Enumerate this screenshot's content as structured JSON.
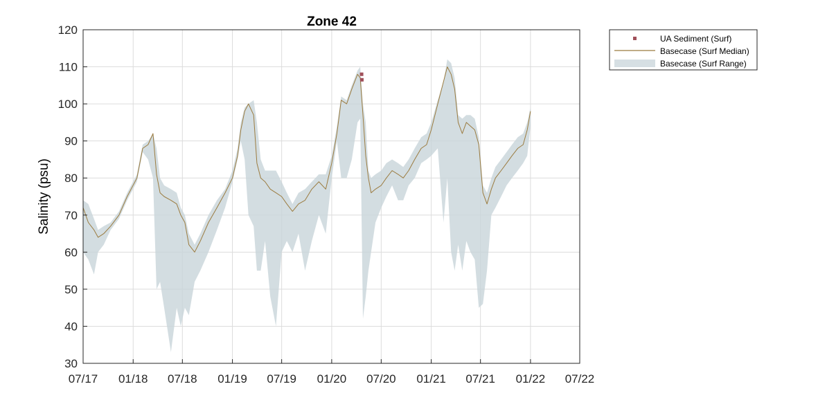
{
  "chart_data": {
    "type": "line",
    "title": "Zone 42",
    "ylabel": "Salinity (psu)",
    "xlabel": "",
    "xlim": [
      "2017-07-01",
      "2022-07-01"
    ],
    "ylim": [
      30,
      120
    ],
    "xticks": [
      {
        "date": "2017-07-01",
        "label": "07/17"
      },
      {
        "date": "2018-01-01",
        "label": "01/18"
      },
      {
        "date": "2018-07-01",
        "label": "07/18"
      },
      {
        "date": "2019-01-01",
        "label": "01/19"
      },
      {
        "date": "2019-07-01",
        "label": "07/19"
      },
      {
        "date": "2020-01-01",
        "label": "01/20"
      },
      {
        "date": "2020-07-01",
        "label": "07/20"
      },
      {
        "date": "2021-01-01",
        "label": "01/21"
      },
      {
        "date": "2021-07-01",
        "label": "07/21"
      },
      {
        "date": "2022-01-01",
        "label": "01/22"
      },
      {
        "date": "2022-07-01",
        "label": "07/22"
      }
    ],
    "yticks": [
      "30",
      "40",
      "50",
      "60",
      "70",
      "80",
      "90",
      "100",
      "110",
      "120"
    ],
    "grid": true,
    "legend_position": "outside-top-right",
    "colors": {
      "median": "#9b7b3f",
      "range": "#c8d4da",
      "sediment": "#a0505a"
    },
    "series": [
      {
        "name": "Basecase (Surf Median)",
        "kind": "line",
        "x": [
          "2017-07-01",
          "2017-07-20",
          "2017-08-10",
          "2017-08-25",
          "2017-09-15",
          "2017-10-10",
          "2017-11-10",
          "2017-12-10",
          "2018-01-15",
          "2018-02-05",
          "2018-02-25",
          "2018-03-15",
          "2018-03-28",
          "2018-04-10",
          "2018-04-25",
          "2018-05-20",
          "2018-06-10",
          "2018-06-25",
          "2018-07-10",
          "2018-07-25",
          "2018-08-15",
          "2018-09-05",
          "2018-10-05",
          "2018-11-05",
          "2018-12-05",
          "2019-01-01",
          "2019-01-20",
          "2019-02-01",
          "2019-02-15",
          "2019-03-01",
          "2019-03-20",
          "2019-04-01",
          "2019-04-15",
          "2019-05-01",
          "2019-05-20",
          "2019-06-10",
          "2019-07-01",
          "2019-07-20",
          "2019-08-10",
          "2019-09-01",
          "2019-09-25",
          "2019-10-20",
          "2019-11-15",
          "2019-12-10",
          "2020-01-01",
          "2020-01-20",
          "2020-02-05",
          "2020-02-25",
          "2020-03-15",
          "2020-04-05",
          "2020-04-15",
          "2020-04-25",
          "2020-05-05",
          "2020-05-15",
          "2020-05-25",
          "2020-06-10",
          "2020-07-01",
          "2020-07-20",
          "2020-08-10",
          "2020-09-01",
          "2020-09-20",
          "2020-10-10",
          "2020-11-01",
          "2020-11-25",
          "2020-12-15",
          "2021-01-01",
          "2021-01-25",
          "2021-02-15",
          "2021-03-01",
          "2021-03-15",
          "2021-03-28",
          "2021-04-10",
          "2021-04-25",
          "2021-05-10",
          "2021-05-25",
          "2021-06-10",
          "2021-06-25",
          "2021-07-10",
          "2021-07-25",
          "2021-08-10",
          "2021-08-25",
          "2021-09-15",
          "2021-10-05",
          "2021-10-25",
          "2021-11-15",
          "2021-12-05",
          "2021-12-20",
          "2022-01-01"
        ],
        "y": [
          72,
          68,
          66,
          64,
          65,
          67,
          70,
          75,
          80,
          88,
          89,
          92,
          81,
          76,
          75,
          74,
          73,
          70,
          68,
          62,
          60,
          63,
          68,
          72,
          76,
          80,
          86,
          93,
          98,
          100,
          97,
          84,
          80,
          79,
          77,
          76,
          75,
          73,
          71,
          73,
          74,
          77,
          79,
          77,
          84,
          92,
          101,
          100,
          104,
          108,
          107,
          97,
          86,
          80,
          76,
          77,
          78,
          80,
          82,
          81,
          80,
          82,
          85,
          88,
          89,
          93,
          100,
          106,
          110,
          108,
          104,
          95,
          92,
          95,
          94,
          93,
          89,
          76,
          73,
          77,
          80,
          82,
          84,
          86,
          88,
          89,
          93,
          98
        ]
      },
      {
        "name": "Basecase (Surf Range)",
        "kind": "band",
        "x": [
          "2017-07-01",
          "2017-07-20",
          "2017-08-10",
          "2017-08-25",
          "2017-09-15",
          "2017-10-10",
          "2017-11-10",
          "2017-12-10",
          "2018-01-15",
          "2018-02-05",
          "2018-02-25",
          "2018-03-15",
          "2018-03-28",
          "2018-04-10",
          "2018-04-25",
          "2018-05-20",
          "2018-06-10",
          "2018-06-25",
          "2018-07-10",
          "2018-07-25",
          "2018-08-15",
          "2018-09-05",
          "2018-10-05",
          "2018-11-05",
          "2018-12-05",
          "2019-01-01",
          "2019-01-20",
          "2019-02-01",
          "2019-02-15",
          "2019-03-01",
          "2019-03-20",
          "2019-04-01",
          "2019-04-15",
          "2019-05-01",
          "2019-05-20",
          "2019-06-10",
          "2019-07-01",
          "2019-07-20",
          "2019-08-10",
          "2019-09-01",
          "2019-09-25",
          "2019-10-20",
          "2019-11-15",
          "2019-12-10",
          "2020-01-01",
          "2020-01-20",
          "2020-02-05",
          "2020-02-25",
          "2020-03-15",
          "2020-04-05",
          "2020-04-15",
          "2020-04-25",
          "2020-05-05",
          "2020-05-15",
          "2020-05-25",
          "2020-06-10",
          "2020-07-01",
          "2020-07-20",
          "2020-08-10",
          "2020-09-01",
          "2020-09-20",
          "2020-10-10",
          "2020-11-01",
          "2020-11-25",
          "2020-12-15",
          "2021-01-01",
          "2021-01-25",
          "2021-02-15",
          "2021-03-01",
          "2021-03-15",
          "2021-03-28",
          "2021-04-10",
          "2021-04-25",
          "2021-05-10",
          "2021-05-25",
          "2021-06-10",
          "2021-06-25",
          "2021-07-10",
          "2021-07-25",
          "2021-08-10",
          "2021-08-25",
          "2021-09-15",
          "2021-10-05",
          "2021-10-25",
          "2021-11-15",
          "2021-12-05",
          "2021-12-20",
          "2022-01-01"
        ],
        "lower": [
          60,
          58,
          54,
          60,
          62,
          66,
          69,
          74,
          79,
          87,
          85,
          80,
          50,
          52,
          45,
          33,
          45,
          40,
          45,
          43,
          52,
          55,
          60,
          66,
          72,
          79,
          85,
          90,
          85,
          70,
          67,
          55,
          55,
          63,
          48,
          40,
          60,
          63,
          60,
          65,
          55,
          63,
          70,
          65,
          80,
          90,
          80,
          80,
          85,
          95,
          96,
          42,
          48,
          55,
          60,
          68,
          72,
          75,
          78,
          74,
          74,
          78,
          80,
          84,
          85,
          86,
          88,
          68,
          80,
          60,
          55,
          62,
          55,
          63,
          60,
          58,
          45,
          46,
          55,
          70,
          72,
          75,
          78,
          80,
          82,
          84,
          86,
          94
        ],
        "upper": [
          74,
          73,
          69,
          66,
          67,
          68,
          71,
          76,
          81,
          89,
          90,
          92,
          88,
          80,
          78,
          77,
          76,
          72,
          70,
          65,
          62,
          65,
          70,
          74,
          77,
          82,
          88,
          95,
          99,
          100,
          101,
          95,
          85,
          82,
          82,
          82,
          79,
          76,
          73,
          76,
          77,
          79,
          81,
          81,
          86,
          94,
          102,
          101,
          105,
          109,
          110,
          100,
          95,
          82,
          80,
          81,
          82,
          84,
          85,
          84,
          83,
          85,
          88,
          91,
          92,
          95,
          101,
          106,
          112,
          111,
          107,
          97,
          96,
          97,
          97,
          96,
          91,
          78,
          76,
          80,
          83,
          85,
          87,
          89,
          91,
          92,
          95,
          99
        ]
      },
      {
        "name": "UA Sediment (Surf)",
        "kind": "scatter",
        "x": [
          "2020-04-20",
          "2020-04-21"
        ],
        "y": [
          108,
          106.5
        ]
      }
    ]
  }
}
